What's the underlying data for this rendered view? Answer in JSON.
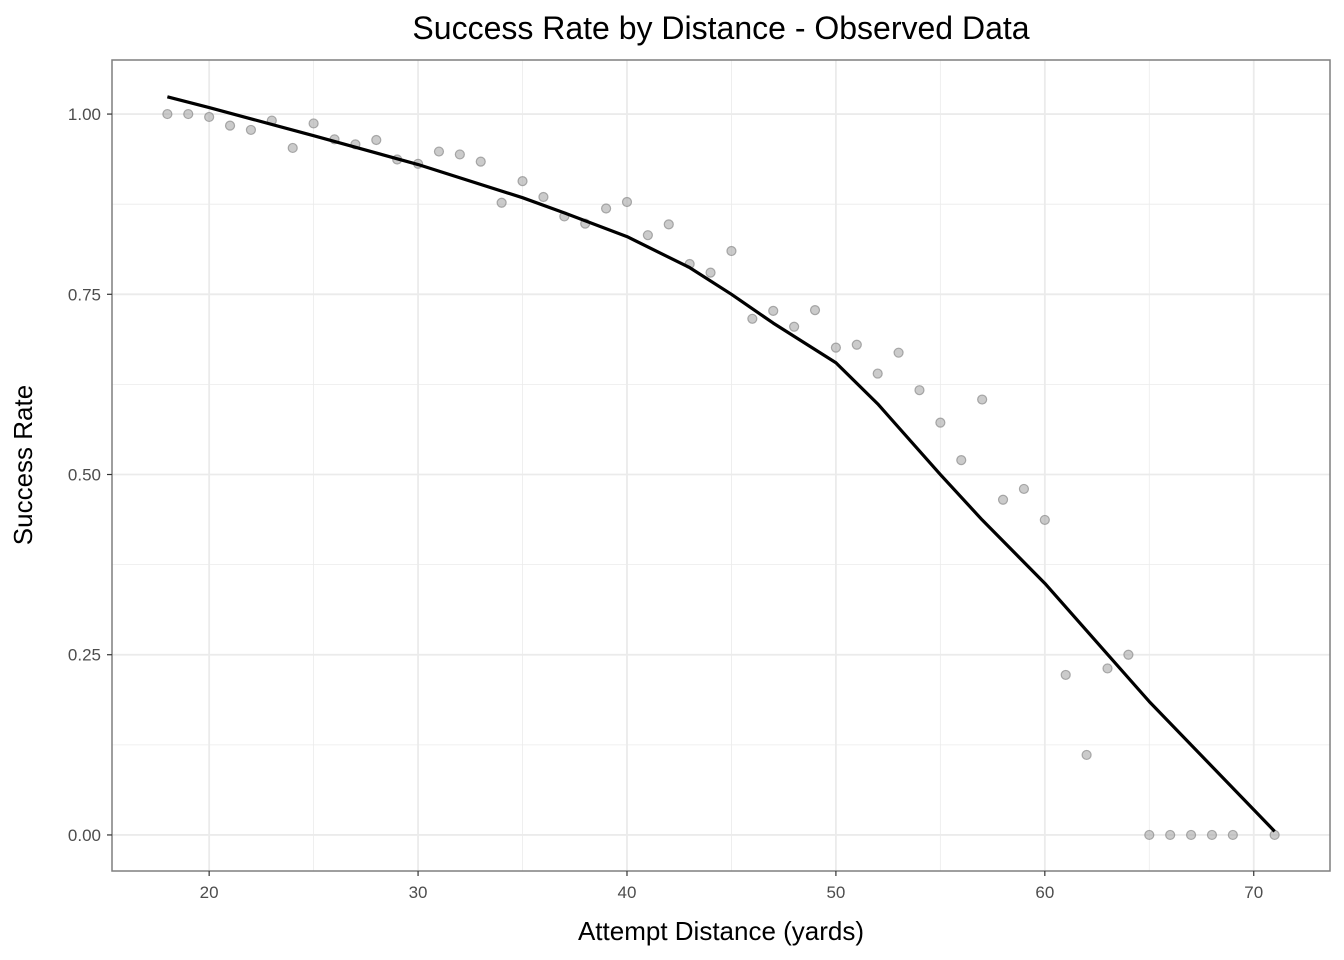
{
  "chart_data": {
    "type": "scatter",
    "title": "Success Rate by Distance - Observed Data",
    "xlabel": "Attempt Distance (yards)",
    "ylabel": "Success Rate",
    "xlim": [
      15.35,
      73.65
    ],
    "ylim": [
      -0.05,
      1.075
    ],
    "x_ticks": [
      20,
      30,
      40,
      50,
      60,
      70
    ],
    "x_tick_labels": [
      "20",
      "30",
      "40",
      "50",
      "60",
      "70"
    ],
    "y_ticks": [
      0,
      0.25,
      0.5,
      0.75,
      1.0
    ],
    "y_tick_labels": [
      "0.00",
      "0.25",
      "0.50",
      "0.75",
      "1.00"
    ],
    "grid": true,
    "colors": {
      "points": "#a8a8a8",
      "line": "#000000",
      "grid": "#ebebeb",
      "border": "#7f7f7f"
    },
    "series": [
      {
        "kind": "points",
        "x": [
          18,
          19,
          20,
          21,
          22,
          23,
          24,
          25,
          26,
          27,
          28,
          29,
          30,
          31,
          32,
          33,
          34,
          35,
          36,
          37,
          38,
          39,
          40,
          41,
          42,
          43,
          44,
          45,
          46,
          47,
          48,
          49,
          50,
          51,
          52,
          53,
          54,
          55,
          56,
          57,
          58,
          59,
          60,
          61,
          62,
          63,
          64,
          65,
          66,
          67,
          68,
          69,
          71
        ],
        "y": [
          1.0,
          1.0,
          0.996,
          0.984,
          0.978,
          0.991,
          0.953,
          0.987,
          0.965,
          0.958,
          0.964,
          0.937,
          0.931,
          0.948,
          0.944,
          0.934,
          0.877,
          0.907,
          0.885,
          0.858,
          0.848,
          0.869,
          0.878,
          0.832,
          0.847,
          0.792,
          0.78,
          0.81,
          0.716,
          0.727,
          0.705,
          0.728,
          0.676,
          0.68,
          0.64,
          0.669,
          0.617,
          0.572,
          0.52,
          0.604,
          0.465,
          0.48,
          0.437,
          0.222,
          0.111,
          0.231,
          0.25,
          0.0,
          0.0,
          0.0,
          0.0,
          0.0,
          0.0
        ]
      },
      {
        "kind": "line",
        "x": [
          18,
          20,
          25,
          30,
          35,
          37,
          40,
          43,
          45,
          47,
          50,
          52,
          55,
          57,
          60,
          65,
          71
        ],
        "y": [
          1.024,
          1.009,
          0.97,
          0.93,
          0.884,
          0.863,
          0.83,
          0.787,
          0.75,
          0.71,
          0.655,
          0.598,
          0.5,
          0.437,
          0.349,
          0.185,
          0.005
        ]
      }
    ]
  }
}
